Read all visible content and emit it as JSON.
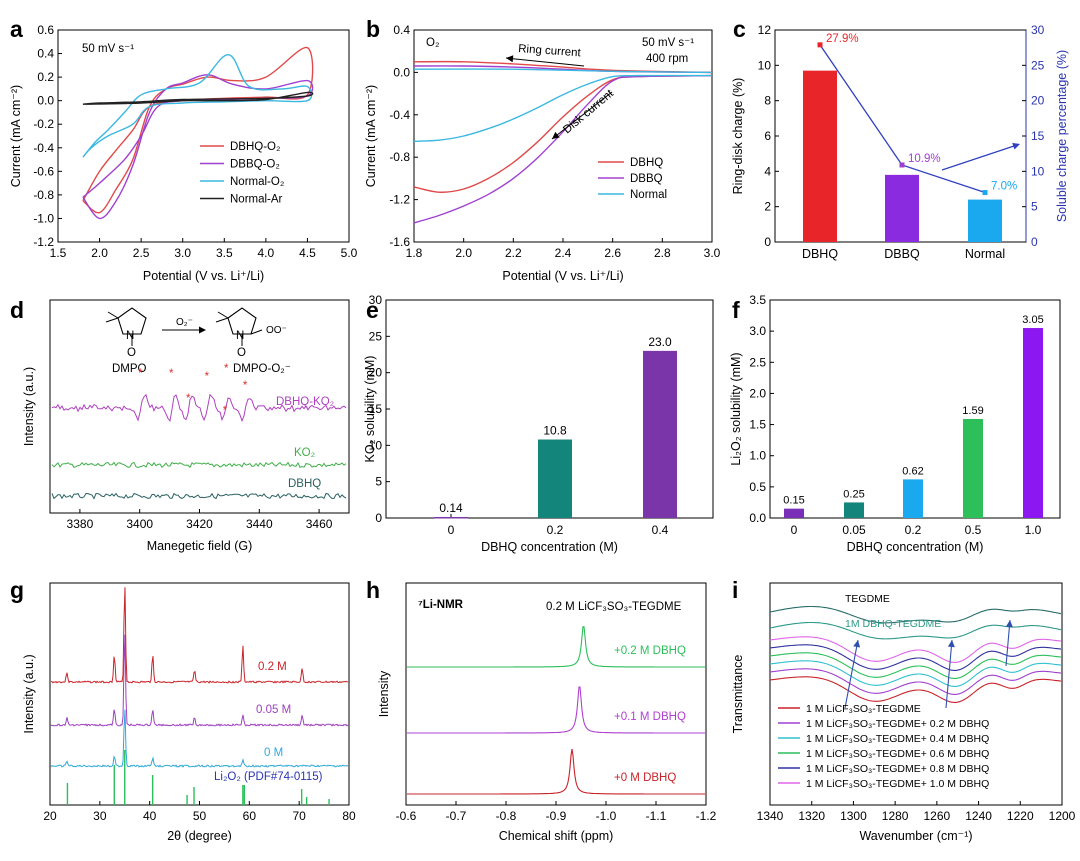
{
  "chart_data": [
    {
      "panel": "a",
      "type": "line",
      "xlabel": "Potential (V vs. Li⁺/Li)",
      "ylabel": "Current (mA cm⁻²)",
      "xlim": [
        1.5,
        5.0
      ],
      "ylim": [
        -1.2,
        0.6
      ],
      "xticks": [
        "1.5",
        "2.0",
        "2.5",
        "3.0",
        "3.5",
        "4.0",
        "4.5",
        "5.0"
      ],
      "yticks": [
        "-1.2",
        "-1.0",
        "-0.8",
        "-0.6",
        "-0.4",
        "-0.2",
        "0.0",
        "0.2",
        "0.4",
        "0.6"
      ],
      "annotation": "50 mV s⁻¹",
      "series": [
        {
          "name": "DBHQ-O₂",
          "color": "#e04a4a",
          "points": [
            [
              1.8,
              -0.85
            ],
            [
              2.0,
              -0.95
            ],
            [
              2.2,
              -0.75
            ],
            [
              2.4,
              -0.5
            ],
            [
              2.6,
              -0.05
            ],
            [
              2.8,
              0.1
            ],
            [
              3.0,
              0.14
            ],
            [
              3.3,
              0.2
            ],
            [
              3.6,
              0.17
            ],
            [
              4.0,
              0.2
            ],
            [
              4.5,
              0.45
            ],
            [
              4.5,
              0.05
            ],
            [
              4.0,
              0.03
            ],
            [
              3.5,
              0.02
            ],
            [
              3.0,
              0.0
            ],
            [
              2.6,
              -0.05
            ],
            [
              2.4,
              -0.25
            ],
            [
              2.2,
              -0.42
            ],
            [
              2.0,
              -0.6
            ],
            [
              1.8,
              -0.85
            ]
          ]
        },
        {
          "name": "DBBQ-O₂",
          "color": "#a040d0",
          "points": [
            [
              1.8,
              -0.82
            ],
            [
              2.0,
              -1.0
            ],
            [
              2.2,
              -0.85
            ],
            [
              2.4,
              -0.55
            ],
            [
              2.6,
              -0.1
            ],
            [
              2.8,
              0.1
            ],
            [
              3.0,
              0.15
            ],
            [
              3.3,
              0.22
            ],
            [
              3.6,
              0.14
            ],
            [
              4.0,
              0.1
            ],
            [
              4.5,
              0.17
            ],
            [
              4.5,
              0.04
            ],
            [
              4.0,
              0.02
            ],
            [
              3.5,
              0.01
            ],
            [
              3.0,
              0.0
            ],
            [
              2.7,
              -0.05
            ],
            [
              2.5,
              -0.3
            ],
            [
              2.3,
              -0.5
            ],
            [
              2.0,
              -0.7
            ],
            [
              1.8,
              -0.82
            ]
          ]
        },
        {
          "name": "Normal-O₂",
          "color": "#3ab8e0",
          "points": [
            [
              1.8,
              -0.48
            ],
            [
              1.95,
              -0.35
            ],
            [
              2.1,
              -0.25
            ],
            [
              2.3,
              -0.1
            ],
            [
              2.5,
              0.05
            ],
            [
              2.8,
              0.1
            ],
            [
              3.2,
              0.15
            ],
            [
              3.55,
              0.39
            ],
            [
              3.8,
              0.12
            ],
            [
              4.2,
              0.1
            ],
            [
              4.5,
              0.12
            ],
            [
              4.5,
              0.0
            ],
            [
              4.0,
              0.0
            ],
            [
              3.5,
              -0.01
            ],
            [
              3.0,
              -0.02
            ],
            [
              2.6,
              -0.05
            ],
            [
              2.4,
              -0.2
            ],
            [
              2.1,
              -0.3
            ],
            [
              1.9,
              -0.4
            ],
            [
              1.8,
              -0.48
            ]
          ]
        },
        {
          "name": "Normal-Ar",
          "color": "#222222",
          "points": [
            [
              1.8,
              -0.03
            ],
            [
              2.5,
              -0.02
            ],
            [
              3.0,
              0.0
            ],
            [
              3.5,
              0.0
            ],
            [
              4.0,
              0.01
            ],
            [
              4.5,
              0.07
            ],
            [
              4.5,
              0.04
            ],
            [
              4.0,
              0.02
            ],
            [
              3.0,
              0.01
            ],
            [
              2.5,
              -0.01
            ],
            [
              2.0,
              -0.02
            ],
            [
              1.8,
              -0.03
            ]
          ]
        }
      ]
    },
    {
      "panel": "b",
      "type": "line",
      "xlabel": "Potential (V vs. Li⁺/Li)",
      "ylabel": "Current (mA cm⁻²)",
      "xlim": [
        1.8,
        3.0
      ],
      "ylim": [
        -1.6,
        0.4
      ],
      "xticks": [
        "1.8",
        "2.0",
        "2.2",
        "2.4",
        "2.6",
        "2.8",
        "3.0"
      ],
      "yticks": [
        "-1.6",
        "-1.2",
        "-0.8",
        "-0.4",
        "0.0",
        "0.4"
      ],
      "annotations": {
        "gas": "O₂",
        "rate": "50 mV s⁻¹",
        "rpm": "400 rpm",
        "ring": "Ring current",
        "disk": "Disk current"
      },
      "series": [
        {
          "name": "DBHQ",
          "color": "#e04a4a",
          "disk": [
            [
              1.8,
              -1.08
            ],
            [
              1.9,
              -1.13
            ],
            [
              2.0,
              -1.1
            ],
            [
              2.1,
              -1.0
            ],
            [
              2.2,
              -0.85
            ],
            [
              2.3,
              -0.65
            ],
            [
              2.4,
              -0.42
            ],
            [
              2.5,
              -0.22
            ],
            [
              2.6,
              -0.07
            ],
            [
              2.7,
              -0.04
            ],
            [
              3.0,
              -0.03
            ]
          ],
          "ring": [
            [
              1.8,
              0.1
            ],
            [
              2.0,
              0.1
            ],
            [
              2.2,
              0.08
            ],
            [
              2.4,
              0.05
            ],
            [
              2.6,
              0.02
            ],
            [
              3.0,
              0.0
            ]
          ]
        },
        {
          "name": "DBBQ",
          "color": "#a040d0",
          "disk": [
            [
              1.8,
              -1.42
            ],
            [
              1.9,
              -1.35
            ],
            [
              2.0,
              -1.26
            ],
            [
              2.1,
              -1.15
            ],
            [
              2.2,
              -1.0
            ],
            [
              2.3,
              -0.8
            ],
            [
              2.4,
              -0.56
            ],
            [
              2.5,
              -0.3
            ],
            [
              2.6,
              -0.08
            ],
            [
              2.7,
              -0.04
            ],
            [
              3.0,
              -0.03
            ]
          ],
          "ring": [
            [
              1.8,
              0.06
            ],
            [
              2.0,
              0.06
            ],
            [
              2.2,
              0.05
            ],
            [
              2.4,
              0.03
            ],
            [
              2.6,
              0.01
            ],
            [
              3.0,
              0.0
            ]
          ]
        },
        {
          "name": "Normal",
          "color": "#3ab8e0",
          "disk": [
            [
              1.8,
              -0.65
            ],
            [
              1.9,
              -0.64
            ],
            [
              2.0,
              -0.6
            ],
            [
              2.1,
              -0.53
            ],
            [
              2.2,
              -0.44
            ],
            [
              2.3,
              -0.33
            ],
            [
              2.4,
              -0.21
            ],
            [
              2.5,
              -0.11
            ],
            [
              2.6,
              -0.04
            ],
            [
              2.7,
              -0.03
            ],
            [
              3.0,
              -0.03
            ]
          ],
          "ring": [
            [
              1.8,
              0.03
            ],
            [
              2.2,
              0.03
            ],
            [
              2.6,
              0.01
            ],
            [
              3.0,
              0.0
            ]
          ]
        }
      ]
    },
    {
      "panel": "c",
      "type": "bar",
      "categories": [
        "DBHQ",
        "DBBQ",
        "Normal"
      ],
      "values": [
        9.7,
        3.8,
        2.4
      ],
      "colors": [
        "#e8262a",
        "#8b2be0",
        "#1aa8ee"
      ],
      "ylabel": "Ring-disk charge (%)",
      "ylim": [
        0,
        12
      ],
      "yticks": [
        "0",
        "2",
        "4",
        "6",
        "8",
        "10",
        "12"
      ],
      "y2label": "Soluble charge percentage (%)",
      "y2lim": [
        0,
        30
      ],
      "y2ticks": [
        "0",
        "5",
        "10",
        "15",
        "20",
        "25",
        "30"
      ],
      "line_values": [
        27.9,
        10.9,
        7.0
      ],
      "line_labels": [
        "27.9%",
        "10.9%",
        "7.0%"
      ],
      "line_color": "#3040c0"
    },
    {
      "panel": "d",
      "type": "line",
      "xlabel": "Manegetic field (G)",
      "ylabel": "Intensity (a.u.)",
      "xlim": [
        3370,
        3470
      ],
      "xticks": [
        "3380",
        "3400",
        "3420",
        "3440",
        "3460"
      ],
      "labels": {
        "spin_trap": "DMPO",
        "adduct": "DMPO-O₂⁻",
        "reagent": "O₂⁻",
        "star": "*"
      },
      "series": [
        {
          "name": "DBHQ-KO₂",
          "color": "#b040c0"
        },
        {
          "name": "KO₂",
          "color": "#3fae4a"
        },
        {
          "name": "DBHQ",
          "color": "#2a6060"
        }
      ]
    },
    {
      "panel": "e",
      "type": "bar",
      "categories": [
        "0",
        "0.2",
        "0.4"
      ],
      "values": [
        0.14,
        10.8,
        23.0
      ],
      "value_labels": [
        "0.14",
        "10.8",
        "23.0"
      ],
      "colors": [
        "#7c3aa8",
        "#14857a",
        "#7a35a8"
      ],
      "xlabel": "DBHQ concentration (M)",
      "ylabel": "KO₂ solubility (mM)",
      "ylim": [
        0,
        30
      ],
      "yticks": [
        "0",
        "5",
        "10",
        "15",
        "20",
        "25",
        "30"
      ]
    },
    {
      "panel": "f",
      "type": "bar",
      "categories": [
        "0",
        "0.05",
        "0.2",
        "0.5",
        "1.0"
      ],
      "values": [
        0.15,
        0.25,
        0.62,
        1.59,
        3.05
      ],
      "value_labels": [
        "0.15",
        "0.25",
        "0.62",
        "1.59",
        "3.05"
      ],
      "colors": [
        "#7a2fb8",
        "#13857a",
        "#1aa8ee",
        "#2cbf5a",
        "#8d17f0"
      ],
      "xlabel": "DBHQ concentration (M)",
      "ylabel": "Li₂O₂ solubility (mM)",
      "ylim": [
        0,
        3.5
      ],
      "yticks": [
        "0.0",
        "0.5",
        "1.0",
        "1.5",
        "2.0",
        "2.5",
        "3.0",
        "3.5"
      ]
    },
    {
      "panel": "g",
      "type": "line",
      "xlabel": "2θ (degree)",
      "ylabel": "Intensity (a.u.)",
      "xlim": [
        20,
        80
      ],
      "xticks": [
        "20",
        "30",
        "40",
        "50",
        "60",
        "70",
        "80"
      ],
      "reference": "Li₂O₂ (PDF#74-0115)",
      "reference_peaks": [
        23.5,
        32.9,
        35.0,
        40.6,
        47.5,
        48.9,
        58.7,
        59.0,
        70.5,
        71.5,
        76.0
      ],
      "series": [
        {
          "name": "0.2 M",
          "color": "#c8242a",
          "peaks": [
            23.4,
            32.9,
            35.0,
            40.6,
            49.0,
            58.7,
            70.6
          ]
        },
        {
          "name": "0.05 M",
          "color": "#a040c0",
          "peaks": [
            23.4,
            32.9,
            35.0,
            40.6,
            49.0,
            58.7,
            70.6
          ]
        },
        {
          "name": "0 M",
          "color": "#2fa8d8",
          "peaks": [
            23.4,
            32.9,
            35.0,
            40.6,
            58.7
          ]
        }
      ]
    },
    {
      "panel": "h",
      "type": "line",
      "title": "⁷Li-NMR",
      "subtitle": "0.2 M LiCF₃SO₃-TEGDME",
      "xlabel": "Chemical shift (ppm)",
      "ylabel": "Intensity",
      "xlim": [
        -0.6,
        -1.2
      ],
      "xticks": [
        "-0.6",
        "-0.7",
        "-0.8",
        "-0.9",
        "-1.0",
        "-1.1",
        "-1.2"
      ],
      "series": [
        {
          "name": "+0.2 M DBHQ",
          "color": "#2cbf5a",
          "peak": -0.955
        },
        {
          "name": "+0.1 M DBHQ",
          "color": "#b040d0",
          "peak": -0.947
        },
        {
          "name": "+0 M DBHQ",
          "color": "#c8242a",
          "peak": -0.932
        }
      ]
    },
    {
      "panel": "i",
      "type": "line",
      "xlabel": "Wavenumber (cm⁻¹)",
      "ylabel": "Transmittance",
      "xlim": [
        1340,
        1200
      ],
      "xticks": [
        "1340",
        "1320",
        "1300",
        "1280",
        "1260",
        "1240",
        "1220",
        "1200"
      ],
      "top_labels": [
        "TEGDME",
        "1M DBHQ-TEGDME"
      ],
      "series": [
        {
          "name": "TEGDME",
          "color": "#2a6e6a"
        },
        {
          "name": "1M DBHQ-TEGDME",
          "color": "#2e9a8a"
        },
        {
          "name": "1 M LiCF₃SO₃-TEGDME + 1.0 M DBHQ",
          "color": "#e066e8"
        },
        {
          "name": "1 M LiCF₃SO₃-TEGDME + 0.8 M DBHQ",
          "color": "#3030a0"
        },
        {
          "name": "1 M LiCF₃SO₃-TEGDME + 0.6 M DBHQ",
          "color": "#2cbf5a"
        },
        {
          "name": "1 M LiCF₃SO₃-TEGDME + 0.4 M DBHQ",
          "color": "#30c0d0"
        },
        {
          "name": "1 M LiCF₃SO₃-TEGDME + 0.2 M DBHQ",
          "color": "#a040d0"
        },
        {
          "name": "1 M LiCF₃SO₃-TEGDME",
          "color": "#c8242a"
        }
      ],
      "legend": [
        "1 M LiCF₃SO₃-TEGDME",
        "1 M LiCF₃SO₃-TEGDME+ 0.2 M DBHQ",
        "1 M LiCF₃SO₃-TEGDME+ 0.4 M DBHQ",
        "1 M LiCF₃SO₃-TEGDME+ 0.6 M DBHQ",
        "1 M LiCF₃SO₃-TEGDME+ 0.8 M DBHQ",
        "1 M LiCF₃SO₃-TEGDME+ 1.0 M DBHQ"
      ],
      "legend_colors": [
        "#c8242a",
        "#a040d0",
        "#30c0d0",
        "#2cbf5a",
        "#3030a0",
        "#e066e8"
      ]
    }
  ],
  "panel_labels": [
    "a",
    "b",
    "c",
    "d",
    "e",
    "f",
    "g",
    "h",
    "i"
  ]
}
